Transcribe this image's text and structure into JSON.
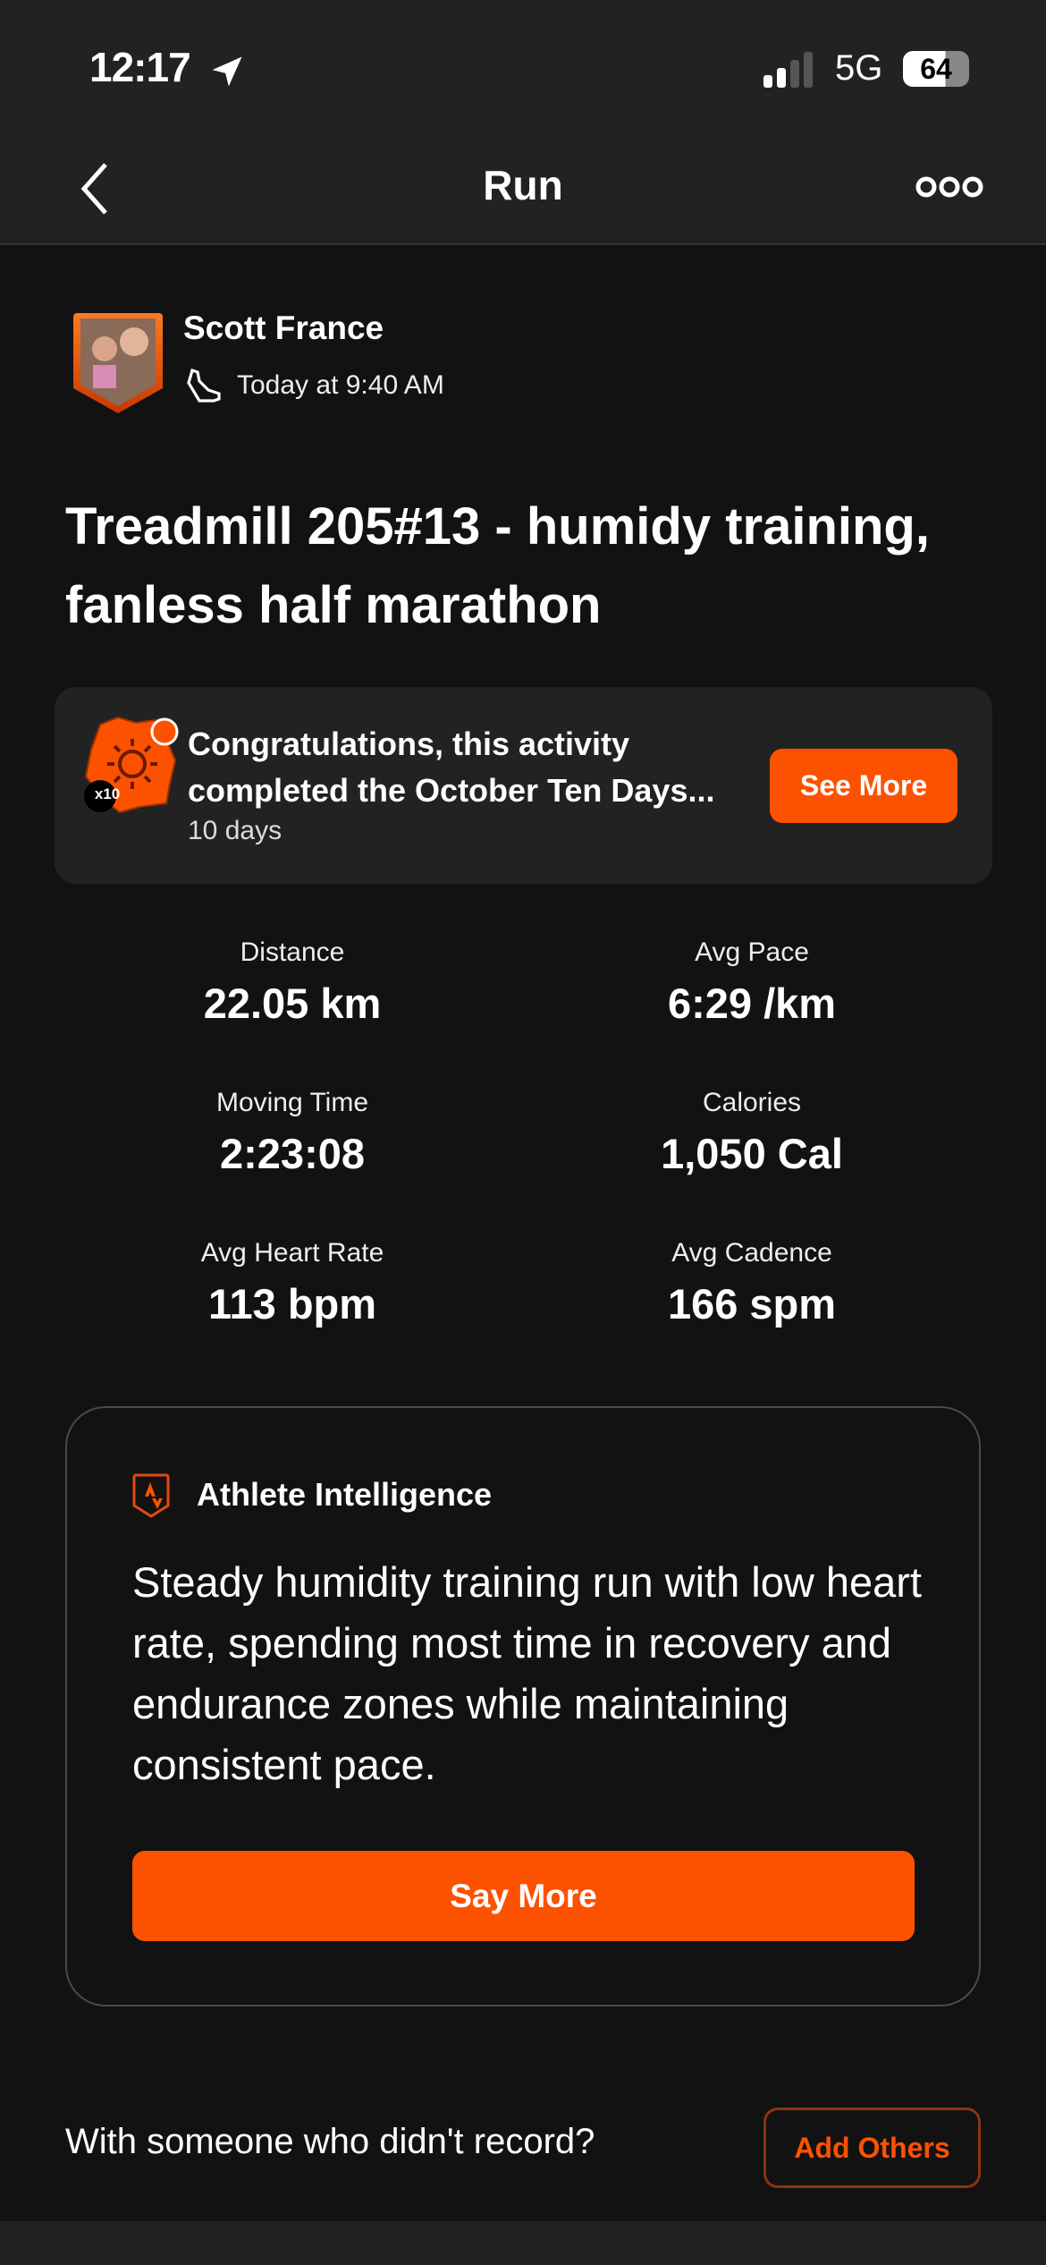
{
  "status_bar": {
    "time": "12:17",
    "network": "5G",
    "battery": "64"
  },
  "nav": {
    "title": "Run"
  },
  "athlete": {
    "name": "Scott France",
    "time": "Today at 9:40 AM"
  },
  "activity": {
    "title": "Treadmill 205#13 - humidy training, fanless half marathon"
  },
  "challenge": {
    "text": "Congratulations, this activity completed the October Ten Days...",
    "sub": "10 days",
    "badge": "x10",
    "button": "See More"
  },
  "stats": [
    {
      "label": "Distance",
      "value": "22.05 km"
    },
    {
      "label": "Avg Pace",
      "value": "6:29 /km"
    },
    {
      "label": "Moving Time",
      "value": "2:23:08"
    },
    {
      "label": "Calories",
      "value": "1,050 Cal"
    },
    {
      "label": "Avg Heart Rate",
      "value": "113 bpm"
    },
    {
      "label": "Avg Cadence",
      "value": "166 spm"
    }
  ],
  "intelligence": {
    "title": "Athlete Intelligence",
    "text": "Steady humidity training run with low heart rate, spending most time in recovery and endurance zones while maintaining consistent pace.",
    "button": "Say More"
  },
  "others": {
    "prompt": "With someone who didn't record?",
    "button": "Add Others"
  },
  "colors": {
    "accent": "#fc5200",
    "background": "#121212",
    "surface": "#222222"
  }
}
